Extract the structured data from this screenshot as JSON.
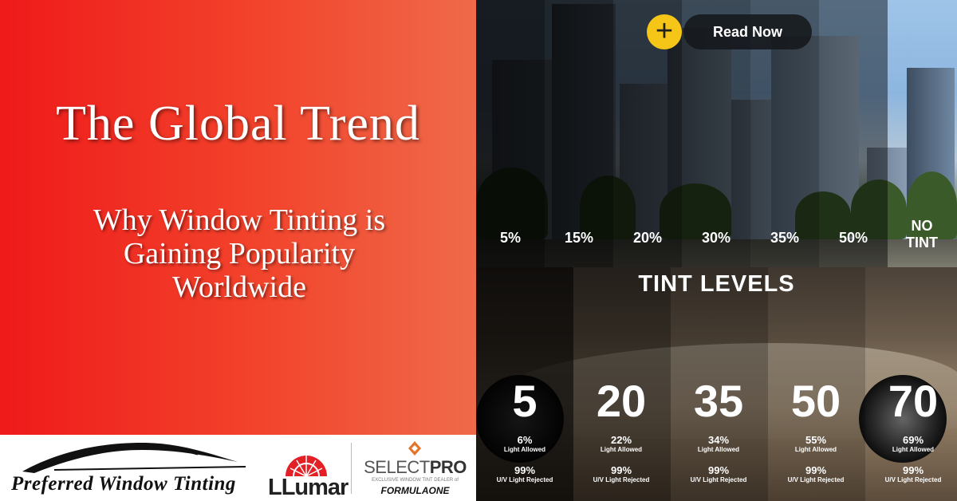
{
  "hero": {
    "title": "The Global Trend",
    "subtitle_lines": [
      "Why Window Tinting is",
      "Gaining Popularity",
      "Worldwide"
    ]
  },
  "cta": {
    "label": "Read Now",
    "icon": "plus-icon",
    "icon_color": "#f5c518"
  },
  "logos": {
    "preferred": "Preferred Window Tinting",
    "llumar": "LLumar",
    "selectpro": {
      "name_a": "SELECT",
      "name_b": "PRO",
      "tagline": "EXCLUSIVE WINDOW TINT DEALER of",
      "brand": "FORMULAONE"
    }
  },
  "tint_photo": {
    "percentages": [
      "5%",
      "15%",
      "20%",
      "30%",
      "35%",
      "50%"
    ],
    "no_tint": [
      "NO",
      "TINT"
    ]
  },
  "tint_levels": {
    "heading": "TINT LEVELS",
    "items": [
      {
        "level": "5",
        "light": "6%",
        "light_label": "Light Allowed",
        "uv": "99%",
        "uv_label": "U/V Light Rejected"
      },
      {
        "level": "20",
        "light": "22%",
        "light_label": "Light Allowed",
        "uv": "99%",
        "uv_label": "U/V Light Rejected"
      },
      {
        "level": "35",
        "light": "34%",
        "light_label": "Light Allowed",
        "uv": "99%",
        "uv_label": "U/V Light Rejected"
      },
      {
        "level": "50",
        "light": "55%",
        "light_label": "Light Allowed",
        "uv": "99%",
        "uv_label": "U/V Light Rejected"
      },
      {
        "level": "70",
        "light": "69%",
        "light_label": "Light Allowed",
        "uv": "99%",
        "uv_label": "U/V Light Rejected"
      }
    ]
  },
  "colors": {
    "left_red": "#ef1a1a",
    "left_orange": "#ef6a4a",
    "llumar_red": "#e32026",
    "selectpro_orange": "#e5742b"
  }
}
